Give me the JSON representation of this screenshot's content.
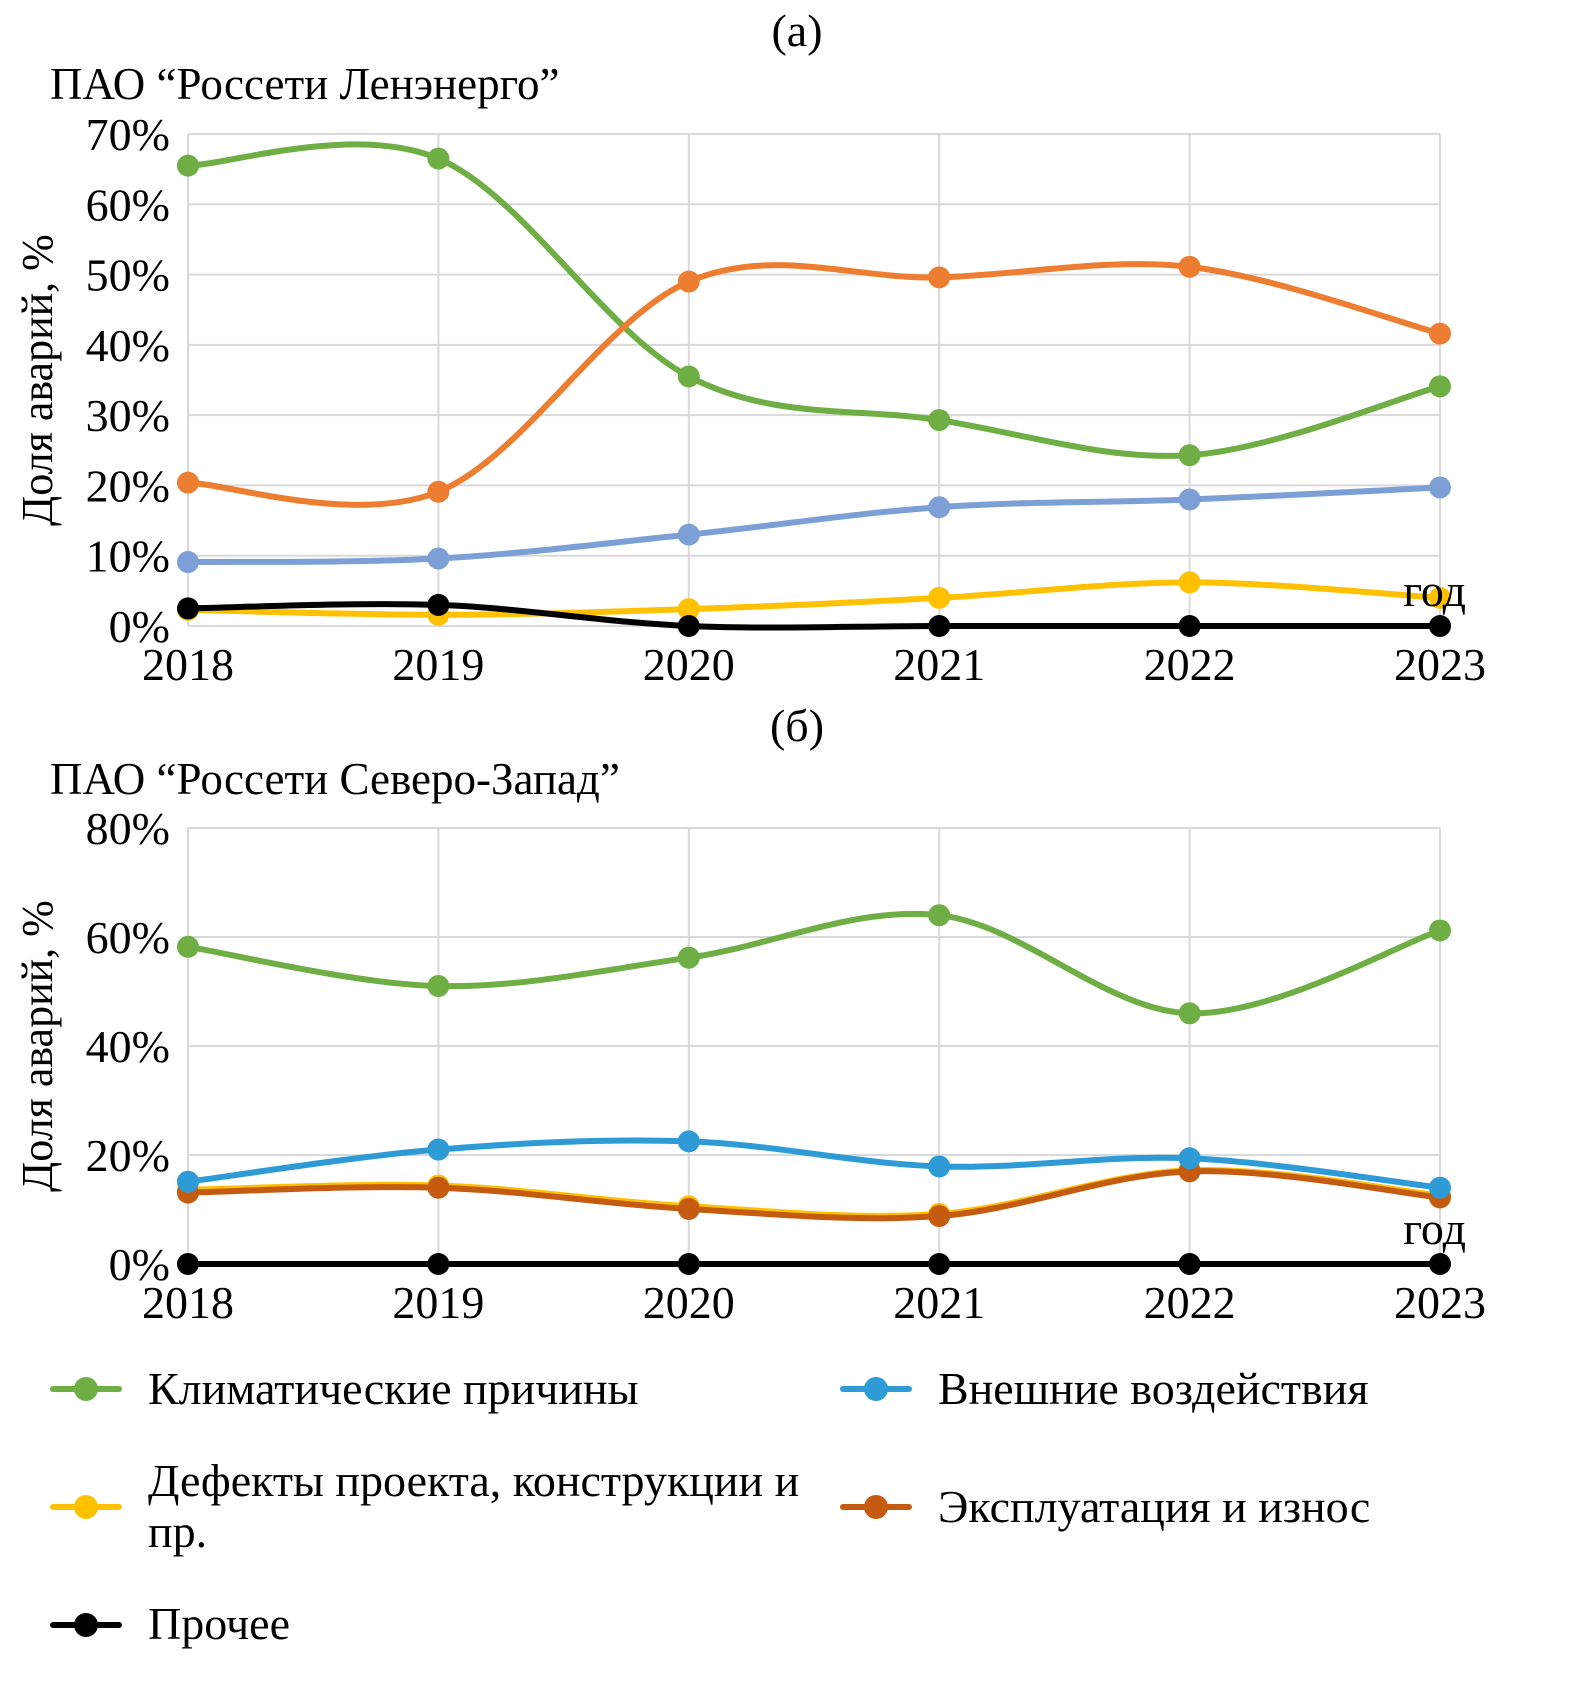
{
  "figure_labels": {
    "a": "(а)",
    "b": "(б)"
  },
  "axis": {
    "y_label": "Доля аварий, %",
    "x_label": "год"
  },
  "grid_color": "#D9D9D9",
  "legend": [
    {
      "name": "Климатические причины",
      "color": "#6FAE44"
    },
    {
      "name": "Внешние воздействия",
      "color": "#2E9BD6"
    },
    {
      "name": "Дефекты проекта, конструкции и пр.",
      "color": "#FFC000"
    },
    {
      "name": "Эксплуатация и износ",
      "color": "#C55A11"
    },
    {
      "name": "Прочее",
      "color": "#000000"
    }
  ],
  "chart_data": [
    {
      "type": "line",
      "title": "ПАО “Россети Ленэнерго”",
      "xlabel": "год",
      "ylabel": "Доля аварий, %",
      "categories": [
        "2018",
        "2019",
        "2020",
        "2021",
        "2022",
        "2023"
      ],
      "ylim": [
        0,
        70
      ],
      "yticks": [
        0,
        10,
        20,
        30,
        40,
        50,
        60,
        70
      ],
      "grid": true,
      "series": [
        {
          "name": "Климатические причины",
          "color": "#6FAE44",
          "values": [
            65.5,
            66.5,
            35.5,
            29.3,
            24.3,
            34.1
          ]
        },
        {
          "name": "Эксплуатация и износ",
          "color": "#ED7D31",
          "values": [
            20.4,
            19.1,
            49.0,
            49.6,
            51.1,
            41.6
          ]
        },
        {
          "name": "Внешние воздействия",
          "color": "#7C9FD6",
          "values": [
            9.1,
            9.6,
            13.0,
            16.9,
            18.0,
            19.7
          ]
        },
        {
          "name": "Дефекты проекта, конструкции и пр.",
          "color": "#FFC000",
          "values": [
            2.3,
            1.6,
            2.4,
            4.0,
            6.2,
            4.0
          ]
        },
        {
          "name": "Прочее",
          "color": "#000000",
          "values": [
            2.5,
            3.0,
            0,
            0,
            0,
            0
          ]
        }
      ]
    },
    {
      "type": "line",
      "title": "ПАО “Россети Северо-Запад”",
      "xlabel": "год",
      "ylabel": "Доля аварий, %",
      "categories": [
        "2018",
        "2019",
        "2020",
        "2021",
        "2022",
        "2023"
      ],
      "ylim": [
        0,
        80
      ],
      "yticks": [
        0,
        20,
        40,
        60,
        80
      ],
      "grid": true,
      "series": [
        {
          "name": "Климатические причины",
          "color": "#6FAE44",
          "values": [
            58.2,
            51.0,
            56.2,
            64.0,
            46.0,
            61.2
          ]
        },
        {
          "name": "Дефекты проекта, конструкции и пр.",
          "color": "#FFC000",
          "values": [
            13.6,
            14.4,
            10.6,
            9.2,
            17.2,
            12.6
          ]
        },
        {
          "name": "Эксплуатация и износ",
          "color": "#C55A11",
          "values": [
            13.1,
            14.0,
            10.1,
            8.8,
            17.0,
            12.2
          ]
        },
        {
          "name": "Внешние воздействия",
          "color": "#2E9BD6",
          "values": [
            15.1,
            21.0,
            22.5,
            17.9,
            19.4,
            14.0
          ]
        },
        {
          "name": "Прочее",
          "color": "#000000",
          "values": [
            0,
            0,
            0,
            0,
            0,
            0
          ]
        }
      ]
    }
  ]
}
